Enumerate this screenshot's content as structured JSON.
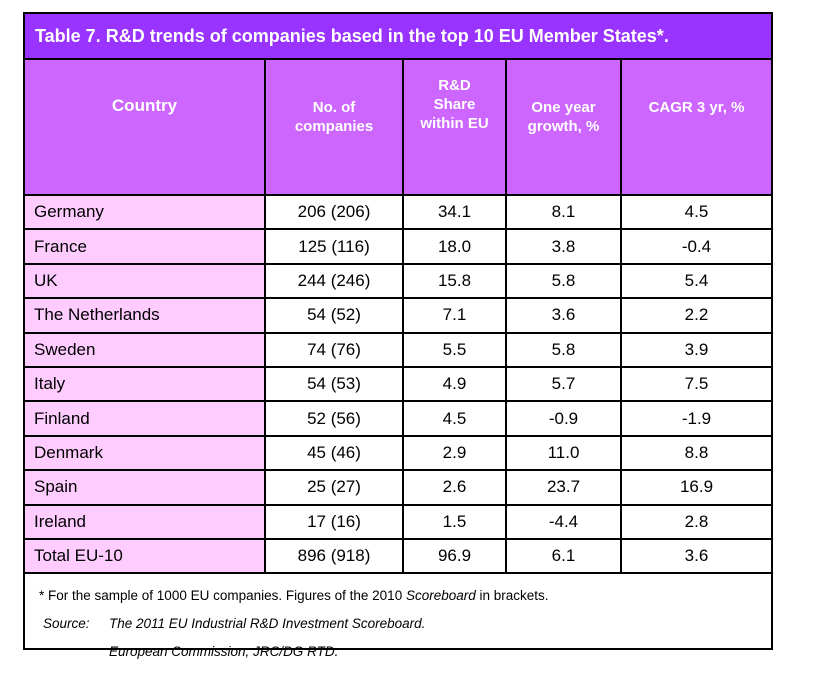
{
  "title": "Table 7.  R&D trends of companies based in the top 10 EU Member States*.",
  "table": {
    "headers": [
      "Country",
      "No. of\ncompanies",
      "R&D\nShare\nwithin EU",
      "One year\ngrowth, %",
      "CAGR 3 yr, %"
    ],
    "rows": [
      [
        "Germany",
        "206 (206)",
        "34.1",
        "8.1",
        "4.5"
      ],
      [
        "France",
        "125 (116)",
        "18.0",
        "3.8",
        "-0.4"
      ],
      [
        "UK",
        "244 (246)",
        "15.8",
        "5.8",
        "5.4"
      ],
      [
        "The Netherlands",
        "54 (52)",
        "7.1",
        "3.6",
        "2.2"
      ],
      [
        "Sweden",
        "74 (76)",
        "5.5",
        "5.8",
        "3.9"
      ],
      [
        "Italy",
        "54 (53)",
        "4.9",
        "5.7",
        "7.5"
      ],
      [
        "Finland",
        "52 (56)",
        "4.5",
        "-0.9",
        "-1.9"
      ],
      [
        "Denmark",
        "45 (46)",
        "2.9",
        "11.0",
        "8.8"
      ],
      [
        "Spain",
        "25 (27)",
        "2.6",
        "23.7",
        "16.9"
      ],
      [
        "Ireland",
        "17 (16)",
        "1.5",
        "-4.4",
        "2.8"
      ],
      [
        "Total EU-10",
        "896 (918)",
        "96.9",
        "6.1",
        "3.6"
      ]
    ]
  },
  "notes": {
    "footnote": [
      "* For the sample of 1000 EU companies. Figures of the 2010 ",
      "Scoreboard",
      " in brackets."
    ],
    "source_label": "Source:",
    "source_lines": [
      "The 2011 EU Industrial R&D Investment Scoreboard.",
      "European Commission, JRC/DG RTD."
    ]
  }
}
